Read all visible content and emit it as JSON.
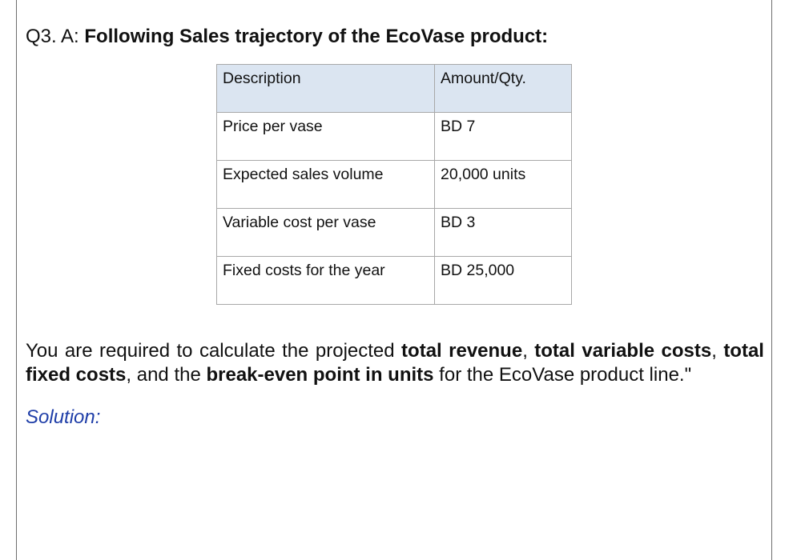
{
  "question": {
    "prefix": "Q3. A: ",
    "title": "Following Sales trajectory of the EcoVase product:"
  },
  "table": {
    "headers": [
      "Description",
      "Amount/Qty."
    ],
    "rows": [
      [
        "Price per vase",
        "BD 7"
      ],
      [
        "Expected sales volume",
        "20,000 units"
      ],
      [
        "Variable cost per vase",
        "BD 3"
      ],
      [
        "Fixed costs for the year",
        "BD 25,000"
      ]
    ],
    "header_background": "#dbe5f1",
    "border_color": "#a8a8a8"
  },
  "instructions": {
    "t1": "You are required to calculate the projected ",
    "b1": "total revenue",
    "t2": ", ",
    "b2": "total variable costs",
    "t3": ", ",
    "b3": "total fixed costs",
    "t4": ", and the ",
    "b4": "break-even point in units",
    "t5": " for the EcoVase product line.\""
  },
  "solution_label": "Solution:",
  "colors": {
    "solution": "#1f3ea8"
  }
}
